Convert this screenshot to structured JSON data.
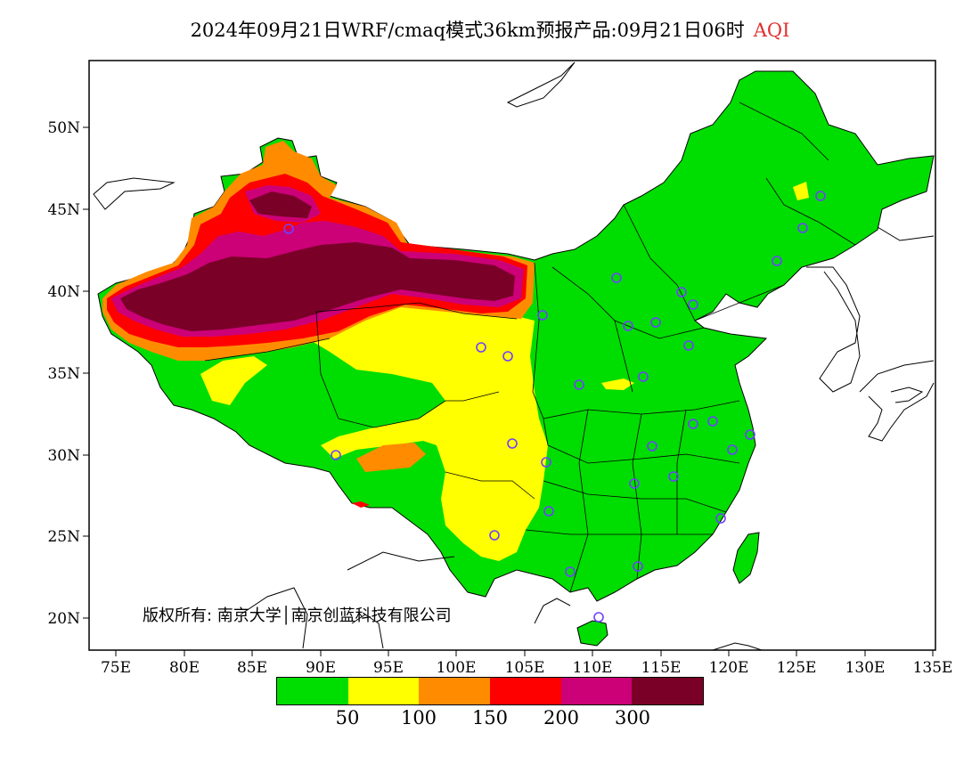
{
  "title": {
    "text": "2024年09月21日WRF/cmaq模式36km预报产品:09月21日06时",
    "product": "AQI"
  },
  "axes": {
    "lon_ticks": [
      "75E",
      "80E",
      "85E",
      "90E",
      "95E",
      "100E",
      "105E",
      "110E",
      "115E",
      "120E",
      "125E",
      "130E",
      "135E"
    ],
    "lat_ticks": [
      "20N",
      "25N",
      "30N",
      "35N",
      "40N",
      "45N",
      "50N"
    ]
  },
  "copyright": "版权所有: 南京大学│南京创蓝科技有限公司",
  "legend": {
    "colors": [
      "#00dd00",
      "#ffff00",
      "#ff8c00",
      "#ff0000",
      "#cc0077",
      "#7a0028"
    ],
    "labels": [
      "50",
      "100",
      "150",
      "200",
      "300"
    ]
  },
  "colors": {
    "good": "#00dd00",
    "moderate": "#ffff00",
    "sensitive": "#ff8c00",
    "unhealthy": "#ff0000",
    "very_unhealthy": "#cc0077",
    "hazardous": "#7a0028"
  }
}
